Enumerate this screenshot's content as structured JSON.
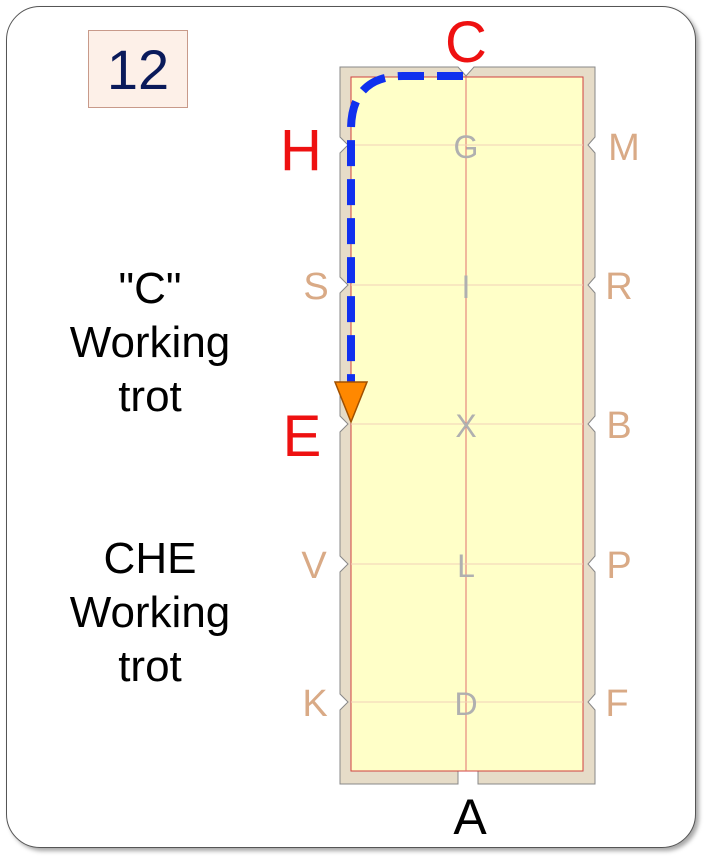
{
  "test_number": "12",
  "movements": [
    {
      "text": "\"C\"\nWorking\ntrot"
    },
    {
      "text": "CHE\nWorking\ntrot"
    }
  ],
  "arena": {
    "highlight_letters": [
      "C",
      "H",
      "E"
    ],
    "left_letters": [
      "H",
      "S",
      "E",
      "V",
      "K"
    ],
    "right_letters": [
      "M",
      "R",
      "B",
      "P",
      "F"
    ],
    "centre_letters": [
      "G",
      "I",
      "X",
      "L",
      "D"
    ],
    "top_letter": "C",
    "bottom_letter": "A"
  },
  "colors": {
    "highlight": "#ee1111",
    "side_letter": "#d9aa86",
    "centre_letter": "#b0b0b0",
    "path": "#1030ee",
    "arrow": "#ff8800",
    "arena_fill": "#ffffc8",
    "arena_border": "#e0d6c2"
  }
}
